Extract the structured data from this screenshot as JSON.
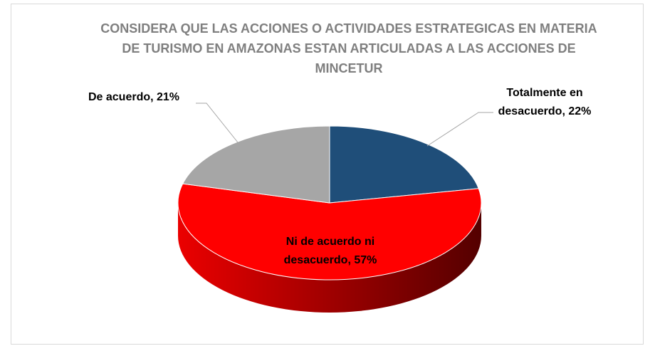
{
  "chart_data": {
    "type": "pie",
    "title": "CONSIDERA QUE LAS ACCIONES O ACTIVIDADES ESTRATEGICAS EN MATERIA DE TURISMO EN AMAZONAS ESTAN ARTICULADAS A LAS ACCIONES DE MINCETUR",
    "categories": [
      "Totalmente en desacuerdo",
      "Ni de acuerdo ni desacuerdo",
      "De acuerdo"
    ],
    "values": [
      22,
      57,
      21
    ],
    "value_labels": [
      "Totalmente en desacuerdo, 22%",
      "Ni de acuerdo ni desacuerdo, 57%",
      "De acuerdo, 21%"
    ],
    "colors": [
      "#1f4e79",
      "#ff0000",
      "#a6a6a6"
    ]
  }
}
